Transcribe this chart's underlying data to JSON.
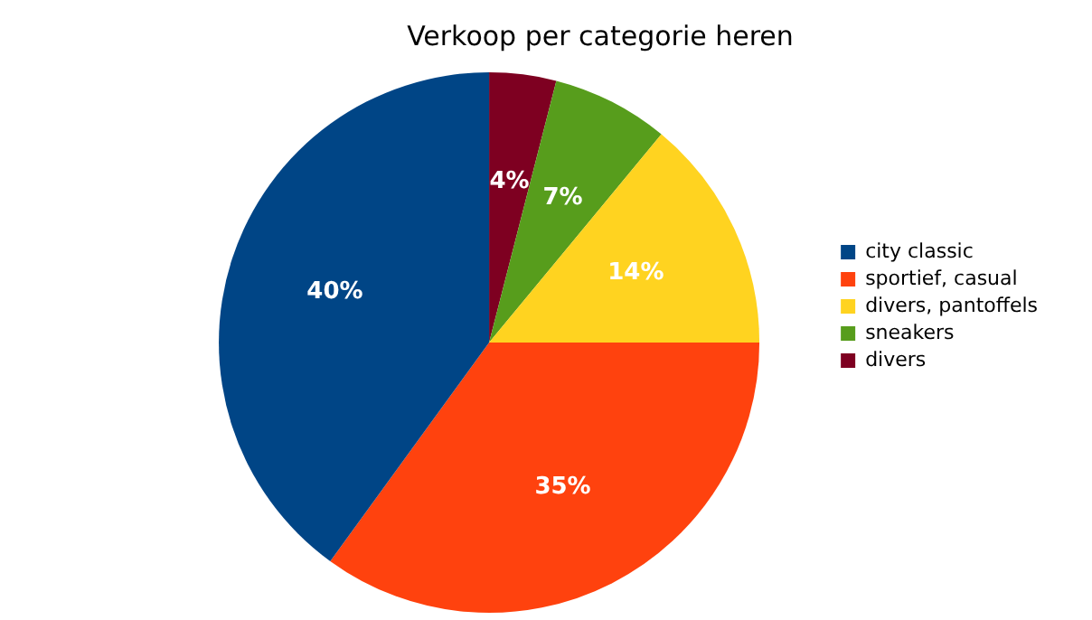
{
  "chart_data": {
    "type": "pie",
    "title": "Verkoop per categorie heren",
    "categories": [
      "city classic",
      "sportief, casual",
      "divers, pantoffels",
      "sneakers",
      "divers"
    ],
    "values": [
      40,
      35,
      14,
      7,
      4
    ],
    "value_labels": [
      "40%",
      "35%",
      "14%",
      "7%",
      "4%"
    ],
    "colors": [
      "#004586",
      "#ff420e",
      "#ffd320",
      "#579d1c",
      "#7e0021"
    ],
    "legend": "right"
  }
}
